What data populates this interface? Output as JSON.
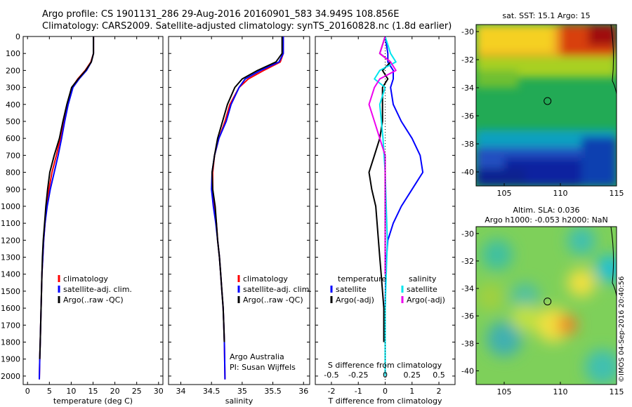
{
  "header": {
    "line1": "Argo profile: CS 1901131_286 29-Aug-2016 20160901_583 34.949S 108.856E",
    "line2": "Climatology: CARS2009. Satellite-adjusted climatology: synTS_20160828.nc (1.8d earlier)"
  },
  "timestamp": "©IMOS 04-Sep-2016 20:40:56",
  "colors": {
    "red": "#ff0000",
    "blue": "#0000ff",
    "black": "#000000",
    "cyan": "#00e5ee",
    "magenta": "#ee00ee"
  },
  "chart_data": [
    {
      "type": "line",
      "panel": "temperature",
      "xlabel": "temperature (deg C)",
      "xlim": [
        -1,
        31
      ],
      "xticks": [
        0,
        5,
        10,
        15,
        20,
        25,
        30
      ],
      "ylim": [
        0,
        2050
      ],
      "yticks": [
        0,
        100,
        200,
        300,
        400,
        500,
        600,
        700,
        800,
        900,
        1000,
        1100,
        1200,
        1300,
        1400,
        1500,
        1600,
        1700,
        1800,
        1900,
        2000
      ],
      "legend": [
        "climatology",
        "satellite-adj. clim.",
        "Argo(..raw -QC)"
      ],
      "series": [
        {
          "name": "climatology",
          "color": "red",
          "x": [
            15.1,
            15.1,
            14.5,
            13.2,
            11.5,
            10.2,
            9.1,
            8.2,
            7.5,
            6.6,
            5.6,
            4.9,
            4.4,
            4.0,
            3.7,
            3.5,
            3.3,
            3.2,
            3.1,
            3.0,
            2.9,
            2.8,
            2.7
          ],
          "y": [
            0,
            100,
            150,
            200,
            250,
            300,
            400,
            500,
            600,
            700,
            800,
            900,
            1000,
            1100,
            1200,
            1300,
            1400,
            1500,
            1600,
            1700,
            1800,
            1900,
            2020
          ]
        },
        {
          "name": "satellite-adj. clim.",
          "color": "blue",
          "x": [
            15.1,
            15.1,
            14.6,
            13.5,
            11.8,
            10.4,
            9.3,
            8.5,
            7.8,
            7.0,
            6.1,
            5.2,
            4.5,
            4.0,
            3.7,
            3.5,
            3.3,
            3.2,
            3.1,
            3.0,
            2.9,
            2.8,
            2.7
          ],
          "y": [
            0,
            100,
            150,
            200,
            250,
            300,
            400,
            500,
            600,
            700,
            800,
            900,
            1000,
            1100,
            1200,
            1300,
            1400,
            1500,
            1600,
            1700,
            1800,
            1900,
            2020
          ]
        },
        {
          "name": "Argo(..raw -QC)",
          "color": "black",
          "x": [
            15.1,
            15.1,
            14.6,
            13.3,
            11.6,
            10.1,
            9.0,
            8.1,
            7.3,
            6.1,
            5.1,
            4.6,
            4.2,
            3.9,
            3.6,
            3.4,
            3.3,
            3.2,
            3.1,
            3.0,
            2.9,
            2.8
          ],
          "y": [
            0,
            100,
            150,
            200,
            250,
            300,
            400,
            500,
            600,
            700,
            800,
            900,
            1000,
            1100,
            1200,
            1300,
            1400,
            1500,
            1600,
            1700,
            1800,
            1900
          ]
        }
      ]
    },
    {
      "type": "line",
      "panel": "salinity",
      "xlabel": "salinity",
      "xlim": [
        33.8,
        36.1
      ],
      "xticks": [
        34,
        34.5,
        35,
        35.5,
        36
      ],
      "ylim": [
        0,
        2050
      ],
      "legend": [
        "climatology",
        "satellite-adj. clim.",
        "Argo(..raw -QC)"
      ],
      "annotation": [
        "Argo Australia",
        "PI: Susan Wijffels"
      ],
      "series": [
        {
          "name": "climatology",
          "color": "red",
          "x": [
            35.67,
            35.67,
            35.62,
            35.35,
            35.1,
            34.95,
            34.8,
            34.72,
            34.62,
            34.55,
            34.52,
            34.52,
            34.55,
            34.58,
            34.6,
            34.63,
            34.65,
            34.67,
            34.69,
            34.7,
            34.71,
            34.72
          ],
          "y": [
            0,
            100,
            150,
            200,
            250,
            300,
            400,
            500,
            600,
            700,
            800,
            900,
            1000,
            1100,
            1200,
            1300,
            1400,
            1500,
            1600,
            1700,
            1800,
            2020
          ]
        },
        {
          "name": "satellite-adj. clim.",
          "color": "blue",
          "x": [
            35.67,
            35.67,
            35.6,
            35.3,
            35.05,
            34.95,
            34.82,
            34.74,
            34.62,
            34.55,
            34.51,
            34.5,
            34.53,
            34.57,
            34.6,
            34.63,
            34.65,
            34.67,
            34.69,
            34.7,
            34.71,
            34.72
          ],
          "y": [
            0,
            100,
            150,
            200,
            250,
            300,
            400,
            500,
            600,
            700,
            800,
            900,
            1000,
            1100,
            1200,
            1300,
            1400,
            1500,
            1600,
            1700,
            1800,
            2020
          ]
        },
        {
          "name": "Argo(..raw -QC)",
          "color": "black",
          "x": [
            35.65,
            35.65,
            35.55,
            35.25,
            35.0,
            34.88,
            34.76,
            34.68,
            34.6,
            34.55,
            34.51,
            34.52,
            34.56,
            34.58,
            34.6,
            34.63,
            34.65,
            34.67,
            34.69,
            34.7,
            34.71
          ],
          "y": [
            0,
            100,
            150,
            200,
            250,
            300,
            400,
            500,
            600,
            700,
            800,
            900,
            1000,
            1100,
            1200,
            1300,
            1400,
            1500,
            1600,
            1700,
            1800
          ]
        }
      ]
    },
    {
      "type": "line",
      "panel": "differences",
      "xlabel": "T difference from climatology",
      "xlim": [
        -2.6,
        2.6
      ],
      "xticks": [
        -2,
        -1,
        0,
        1,
        2
      ],
      "xlabel_top": "S difference from climatology",
      "xticks_top": [
        "-0.5",
        "-0.25",
        "0",
        "0.25",
        "0.5"
      ],
      "legend_title_left": "temperature",
      "legend_title_right": "salinity",
      "legend": [
        "satellite",
        "Argo(-adj)",
        "satellite",
        "Argo(-adj)"
      ],
      "series": [
        {
          "name": "temperature satellite",
          "color": "blue",
          "x": [
            0,
            0.1,
            0.1,
            0.3,
            0.3,
            0.2,
            0.3,
            0.6,
            1.0,
            1.3,
            1.4,
            1.0,
            0.6,
            0.3,
            0.1,
            0.05,
            0.02,
            0,
            0,
            0
          ],
          "y": [
            0,
            100,
            150,
            200,
            250,
            300,
            400,
            500,
            600,
            700,
            800,
            900,
            1000,
            1100,
            1200,
            1300,
            1400,
            1600,
            1800,
            2000
          ]
        },
        {
          "name": "temperature Argo(-adj)",
          "color": "black",
          "x": [
            0,
            -0.2,
            0.2,
            -0.1,
            0.1,
            -0.1,
            -0.1,
            -0.1,
            -0.2,
            -0.4,
            -0.6,
            -0.5,
            -0.35,
            -0.3,
            -0.25,
            -0.2,
            -0.15,
            -0.1,
            -0.05,
            -0.05
          ],
          "y": [
            0,
            100,
            150,
            200,
            250,
            300,
            400,
            500,
            600,
            700,
            800,
            900,
            1000,
            1100,
            1200,
            1300,
            1400,
            1500,
            1600,
            1800
          ]
        },
        {
          "name": "salinity satellite",
          "color": "cyan",
          "x": [
            0,
            0.05,
            0.1,
            -0.05,
            -0.1,
            0,
            -0.05,
            -0.02,
            0,
            0.01,
            0.02,
            0.01,
            0,
            0
          ],
          "y": [
            0,
            100,
            150,
            200,
            250,
            300,
            400,
            600,
            800,
            1000,
            1200,
            1400,
            1600,
            2000
          ]
        },
        {
          "name": "salinity Argo(-adj)",
          "color": "magenta",
          "x": [
            0,
            -0.05,
            0.05,
            0.1,
            -0.05,
            -0.1,
            -0.15,
            -0.1,
            -0.05,
            0,
            0,
            0,
            0
          ],
          "y": [
            0,
            100,
            150,
            200,
            250,
            300,
            400,
            500,
            600,
            700,
            800,
            1000,
            1400
          ]
        }
      ]
    },
    {
      "type": "heatmap",
      "panel": "sst-map",
      "title": "sat. SST: 15.1  Argo: 15",
      "xlim": [
        102.5,
        115
      ],
      "ylim": [
        -41,
        -29.5
      ],
      "xticks": [
        105,
        110,
        115
      ],
      "yticks": [
        -30,
        -32,
        -34,
        -36,
        -38,
        -40
      ],
      "argo_position": [
        108.856,
        -34.949
      ]
    },
    {
      "type": "heatmap",
      "panel": "sla-map",
      "title_line1": "Altim. SLA: 0.036",
      "title_line2": "Argo h1000: -0.053  h2000: NaN",
      "xlim": [
        102.5,
        115
      ],
      "ylim": [
        -41,
        -29.5
      ],
      "xticks": [
        105,
        110,
        115
      ],
      "yticks": [
        -30,
        -32,
        -34,
        -36,
        -38,
        -40
      ],
      "argo_position": [
        108.856,
        -34.949
      ]
    }
  ]
}
